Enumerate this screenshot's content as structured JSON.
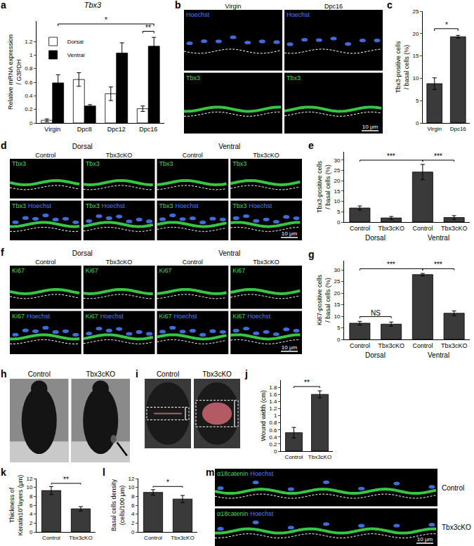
{
  "chart_data": [
    {
      "panel": "a",
      "type": "bar",
      "title": "Tbx3",
      "y_label": [
        "Relative mRNA expression",
        "/ G3PDH"
      ],
      "categories": [
        "Virgin",
        "Dpc8",
        "Dpc12",
        "Dpc16"
      ],
      "series": [
        {
          "name": "Dorsal",
          "color": "#ffffff",
          "values": [
            0.04,
            0.64,
            0.43,
            0.21
          ],
          "errors": [
            0.02,
            0.1,
            0.1,
            0.04
          ]
        },
        {
          "name": "Ventral",
          "color": "#000000",
          "values": [
            0.59,
            0.25,
            1.03,
            1.13
          ],
          "errors": [
            0.12,
            0.02,
            0.15,
            0.13
          ]
        }
      ],
      "ylim": [
        0,
        1.5
      ],
      "yticks": [
        0,
        0.2,
        0.4,
        0.6,
        0.8,
        1,
        1.2
      ],
      "legend": "upper left",
      "significance": [
        {
          "from": [
            3,
            0
          ],
          "to": [
            3,
            1
          ],
          "label": "**"
        },
        {
          "from": [
            0,
            1
          ],
          "to": [
            3,
            1
          ],
          "label": "*"
        }
      ]
    },
    {
      "panel": "c",
      "type": "bar",
      "y_label": [
        "Tbx3-positive cells",
        "/ basal cells (%)"
      ],
      "categories": [
        "Virgin",
        "Dpc16"
      ],
      "values": [
        8.8,
        19.3
      ],
      "errors": [
        1.3,
        0.3
      ],
      "color": "#3a3a3a",
      "ylim": [
        0,
        25
      ],
      "yticks": [
        0,
        5,
        10,
        15,
        20,
        25
      ],
      "significance": [
        {
          "from": 0,
          "to": 1,
          "label": "*"
        }
      ]
    },
    {
      "panel": "e",
      "type": "bar",
      "y_label": [
        "Tbx3-positive cells",
        "/ basal cells (%)"
      ],
      "categories": [
        "Control",
        "Tbx3cKO",
        "Control",
        "Tbx3cKO"
      ],
      "groups": [
        {
          "name": "Dorsal",
          "size": 2
        },
        {
          "name": "Ventral",
          "size": 2
        }
      ],
      "values": [
        6.8,
        2.0,
        24.2,
        2.2
      ],
      "errors": [
        1.0,
        0.7,
        3.7,
        0.9
      ],
      "color": "#3a3a3a",
      "ylim": [
        0,
        34
      ],
      "yticks": [
        0,
        5,
        10,
        15,
        20,
        25,
        30
      ],
      "significance": [
        {
          "from": 0,
          "to": 2,
          "label": "***"
        },
        {
          "from": 2,
          "to": 3,
          "label": "***"
        }
      ]
    },
    {
      "panel": "g",
      "type": "bar",
      "y_label": [
        "Ki67-positive cells",
        "/ basal cells (%)"
      ],
      "categories": [
        "Control",
        "Tbx3cKO",
        "Control",
        "Tbx3cKO"
      ],
      "groups": [
        {
          "name": "Dorsal",
          "size": 2
        },
        {
          "name": "Ventral",
          "size": 2
        }
      ],
      "values": [
        7.0,
        6.6,
        28.0,
        11.3
      ],
      "errors": [
        0.8,
        0.9,
        0.5,
        1.0
      ],
      "color": "#3a3a3a",
      "ylim": [
        0,
        34
      ],
      "yticks": [
        0,
        5,
        10,
        15,
        20,
        25,
        30
      ],
      "significance": [
        {
          "from": 0,
          "to": 1,
          "label": "NS"
        },
        {
          "from": 0,
          "to": 2,
          "label": "***"
        },
        {
          "from": 2,
          "to": 3,
          "label": "***"
        }
      ]
    },
    {
      "panel": "j",
      "type": "bar",
      "y_label": [
        "Wound width (cm)"
      ],
      "categories": [
        "Control",
        "Tbx3cKO"
      ],
      "values": [
        0.52,
        1.6
      ],
      "errors": [
        0.15,
        0.1
      ],
      "color": "#3a3a3a",
      "ylim": [
        0,
        2
      ],
      "yticks": [
        0,
        0.2,
        0.4,
        0.6,
        0.8,
        1,
        1.2,
        1.4,
        1.6,
        1.8
      ],
      "significance": [
        {
          "from": 0,
          "to": 1,
          "label": "**"
        }
      ]
    },
    {
      "panel": "k",
      "type": "bar",
      "y_label": [
        "Thickness of",
        "Keratin10⁺layers (μm)"
      ],
      "categories": [
        "Control",
        "Tbx3cKO"
      ],
      "values": [
        9.3,
        5.2
      ],
      "errors": [
        0.9,
        0.5
      ],
      "color": "#3a3a3a",
      "ylim": [
        0,
        12
      ],
      "yticks": [
        0,
        2,
        4,
        6,
        8,
        10,
        12
      ],
      "significance": [
        {
          "from": 0,
          "to": 1,
          "label": "**"
        }
      ]
    },
    {
      "panel": "l",
      "type": "bar",
      "y_label": [
        "Basal cells density",
        "(cells/100 μm)"
      ],
      "categories": [
        "Control",
        "Tbx3cKO"
      ],
      "values": [
        8.9,
        7.4
      ],
      "errors": [
        0.6,
        0.8
      ],
      "color": "#3a3a3a",
      "ylim": [
        0,
        12
      ],
      "yticks": [
        0,
        2,
        4,
        6,
        8,
        10,
        12
      ],
      "significance": [
        {
          "from": 0,
          "to": 1,
          "label": "*"
        }
      ]
    }
  ],
  "image_panels": [
    {
      "panel": "b",
      "columns": [
        "Virgin",
        "Dpc16"
      ],
      "rows": [
        {
          "stains": [
            {
              "text": "Hoechst",
              "color": "#4d7cff",
              "marker": "nuclei"
            }
          ]
        },
        {
          "stains": [
            {
              "text": "Tbx3",
              "color": "#3ddc4a",
              "marker": "band"
            }
          ]
        }
      ],
      "scale_bar": "10 μm"
    },
    {
      "panel": "d",
      "column_groups": [
        {
          "name": "Dorsal",
          "size": 2
        },
        {
          "name": "Ventral",
          "size": 2
        }
      ],
      "columns": [
        "Control",
        "Tbx3cKO",
        "Control",
        "Tbx3cKO"
      ],
      "rows": [
        {
          "stains": [
            {
              "text": "Tbx3",
              "color": "#3ddc4a",
              "marker": "band"
            }
          ]
        },
        {
          "stains": [
            {
              "text": "Tbx3",
              "color": "#3ddc4a",
              "marker": "band"
            },
            {
              "text": "Hoechst",
              "color": "#4d7cff",
              "marker": "nuclei"
            }
          ]
        }
      ],
      "scale_bar": "10 μm"
    },
    {
      "panel": "f",
      "column_groups": [
        {
          "name": "Dorsal",
          "size": 2
        },
        {
          "name": "Ventral",
          "size": 2
        }
      ],
      "columns": [
        "Control",
        "Tbx3cKO",
        "Control",
        "Tbx3cKO"
      ],
      "rows": [
        {
          "stains": [
            {
              "text": "Ki67",
              "color": "#3ddc4a",
              "marker": "band"
            }
          ]
        },
        {
          "stains": [
            {
              "text": "Ki67",
              "color": "#3ddc4a",
              "marker": "band"
            },
            {
              "text": "Hoechst",
              "color": "#4d7cff",
              "marker": "nuclei"
            }
          ]
        }
      ],
      "scale_bar": "10 μm"
    },
    {
      "panel": "m",
      "rows": [
        {
          "name": "Control",
          "stains": [
            {
              "text": "α18catenin",
              "color": "#3ddc4a",
              "marker": "band"
            },
            {
              "text": "Hoechst",
              "color": "#4d7cff",
              "marker": "nuclei"
            }
          ]
        },
        {
          "name": "Tbx3cKO",
          "stains": [
            {
              "text": "α18catenin",
              "color": "#3ddc4a",
              "marker": "band"
            },
            {
              "text": "Hoechst",
              "color": "#4d7cff",
              "marker": "nuclei"
            }
          ]
        }
      ],
      "scale_bar": "10 μm"
    }
  ],
  "photo_panels": [
    {
      "panel": "h",
      "captions": [
        "Control",
        "Tbx3cKO"
      ]
    },
    {
      "panel": "i",
      "captions": [
        "Control",
        "Tbx3cKO"
      ]
    }
  ]
}
